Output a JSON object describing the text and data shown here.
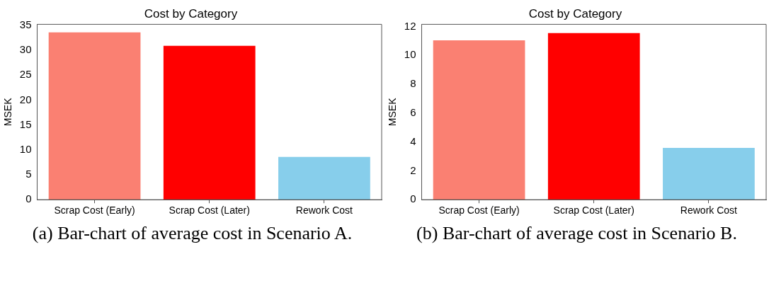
{
  "chart_data": [
    {
      "type": "bar",
      "title": "Cost by Category",
      "ylabel": "MSEK",
      "categories": [
        "Scrap Cost (Early)",
        "Scrap Cost (Later)",
        "Rework Cost"
      ],
      "values": [
        33.6,
        30.9,
        8.6
      ],
      "colors": [
        "#fa8072",
        "#ff0000",
        "#87ceeb"
      ],
      "ylim": [
        0,
        35.2
      ],
      "yticks": [
        0,
        5,
        10,
        15,
        20,
        25,
        30,
        35
      ],
      "grid": false,
      "legend": false,
      "annotations": [
        "(a) Bar-chart of average cost in Scenario A."
      ]
    },
    {
      "type": "bar",
      "title": "Cost by Category",
      "ylabel": "MSEK",
      "categories": [
        "Scrap Cost (Early)",
        "Scrap Cost (Later)",
        "Rework Cost"
      ],
      "values": [
        11.04,
        11.55,
        3.59
      ],
      "colors": [
        "#fa8072",
        "#ff0000",
        "#87ceeb"
      ],
      "ylim": [
        0,
        12.15
      ],
      "yticks": [
        0,
        2,
        4,
        6,
        8,
        10,
        12
      ],
      "grid": false,
      "legend": false,
      "annotations": [
        "(b) Bar-chart of average cost in Scenario B."
      ]
    }
  ]
}
